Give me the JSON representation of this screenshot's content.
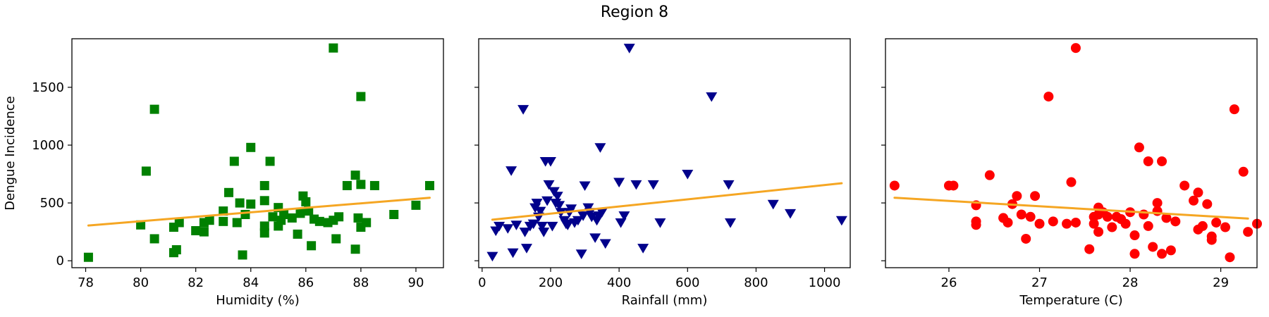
{
  "figure": {
    "title": "Region 8"
  },
  "chart_data": [
    {
      "type": "scatter",
      "xlabel": "Humidity (%)",
      "ylabel": "Dengue Incidence",
      "xlim": [
        77.5,
        91.0
      ],
      "ylim": [
        -60,
        1920
      ],
      "xticks": [
        78,
        80,
        82,
        84,
        86,
        88,
        90
      ],
      "yticks": [
        0,
        500,
        1000,
        1500
      ],
      "marker": "square",
      "color": "#008000",
      "trend_color": "#f5a623",
      "trend": [
        [
          78.1,
          305
        ],
        [
          90.5,
          545
        ]
      ],
      "points": [
        [
          78.1,
          30
        ],
        [
          80.0,
          310
        ],
        [
          80.2,
          775
        ],
        [
          80.5,
          1310
        ],
        [
          80.5,
          190
        ],
        [
          81.2,
          70
        ],
        [
          81.2,
          290
        ],
        [
          81.3,
          95
        ],
        [
          81.4,
          330
        ],
        [
          82.0,
          260
        ],
        [
          82.3,
          250
        ],
        [
          82.3,
          330
        ],
        [
          82.5,
          350
        ],
        [
          83.0,
          340
        ],
        [
          83.0,
          430
        ],
        [
          83.2,
          590
        ],
        [
          83.4,
          860
        ],
        [
          83.5,
          330
        ],
        [
          83.6,
          500
        ],
        [
          83.7,
          50
        ],
        [
          83.8,
          400
        ],
        [
          84.0,
          980
        ],
        [
          84.0,
          490
        ],
        [
          84.5,
          650
        ],
        [
          84.5,
          520
        ],
        [
          84.5,
          240
        ],
        [
          84.5,
          300
        ],
        [
          84.7,
          860
        ],
        [
          84.8,
          380
        ],
        [
          85.0,
          460
        ],
        [
          85.0,
          300
        ],
        [
          85.1,
          350
        ],
        [
          85.2,
          400
        ],
        [
          85.5,
          370
        ],
        [
          85.7,
          230
        ],
        [
          85.8,
          410
        ],
        [
          85.9,
          560
        ],
        [
          86.0,
          510
        ],
        [
          86.1,
          430
        ],
        [
          86.2,
          130
        ],
        [
          86.3,
          360
        ],
        [
          86.5,
          340
        ],
        [
          86.8,
          330
        ],
        [
          87.0,
          1840
        ],
        [
          87.0,
          350
        ],
        [
          87.1,
          190
        ],
        [
          87.2,
          380
        ],
        [
          87.5,
          650
        ],
        [
          87.8,
          740
        ],
        [
          87.8,
          100
        ],
        [
          87.9,
          370
        ],
        [
          88.0,
          1420
        ],
        [
          88.0,
          660
        ],
        [
          88.0,
          290
        ],
        [
          88.2,
          330
        ],
        [
          88.5,
          650
        ],
        [
          89.2,
          400
        ],
        [
          90.0,
          480
        ],
        [
          90.5,
          650
        ]
      ]
    },
    {
      "type": "scatter",
      "xlabel": "Rainfall (mm)",
      "ylabel": "",
      "xlim": [
        -10,
        1075
      ],
      "ylim": [
        -60,
        1920
      ],
      "xticks": [
        0,
        200,
        400,
        600,
        800,
        1000
      ],
      "yticks": [
        0,
        500,
        1000,
        1500
      ],
      "marker": "triangle-down",
      "color": "#00008b",
      "trend_color": "#f5a623",
      "trend": [
        [
          30,
          355
        ],
        [
          1050,
          670
        ]
      ],
      "points": [
        [
          30,
          40
        ],
        [
          40,
          260
        ],
        [
          50,
          300
        ],
        [
          75,
          280
        ],
        [
          85,
          780
        ],
        [
          90,
          70
        ],
        [
          100,
          310
        ],
        [
          120,
          1310
        ],
        [
          125,
          250
        ],
        [
          130,
          110
        ],
        [
          140,
          300
        ],
        [
          150,
          320
        ],
        [
          155,
          460
        ],
        [
          160,
          500
        ],
        [
          165,
          380
        ],
        [
          170,
          430
        ],
        [
          175,
          300
        ],
        [
          180,
          250
        ],
        [
          185,
          860
        ],
        [
          190,
          520
        ],
        [
          195,
          660
        ],
        [
          200,
          860
        ],
        [
          205,
          300
        ],
        [
          210,
          600
        ],
        [
          215,
          500
        ],
        [
          220,
          560
        ],
        [
          225,
          480
        ],
        [
          230,
          420
        ],
        [
          240,
          350
        ],
        [
          245,
          320
        ],
        [
          250,
          310
        ],
        [
          255,
          420
        ],
        [
          260,
          450
        ],
        [
          270,
          330
        ],
        [
          280,
          350
        ],
        [
          290,
          60
        ],
        [
          295,
          390
        ],
        [
          300,
          650
        ],
        [
          310,
          460
        ],
        [
          315,
          420
        ],
        [
          320,
          380
        ],
        [
          330,
          200
        ],
        [
          335,
          350
        ],
        [
          340,
          390
        ],
        [
          345,
          980
        ],
        [
          350,
          420
        ],
        [
          360,
          150
        ],
        [
          400,
          680
        ],
        [
          405,
          330
        ],
        [
          415,
          390
        ],
        [
          430,
          1840
        ],
        [
          450,
          660
        ],
        [
          470,
          110
        ],
        [
          500,
          660
        ],
        [
          520,
          330
        ],
        [
          600,
          750
        ],
        [
          670,
          1420
        ],
        [
          720,
          660
        ],
        [
          725,
          330
        ],
        [
          850,
          490
        ],
        [
          900,
          410
        ],
        [
          1050,
          350
        ]
      ]
    },
    {
      "type": "scatter",
      "xlabel": "Temperature (C)",
      "ylabel": "",
      "xlim": [
        25.3,
        29.4
      ],
      "ylim": [
        -60,
        1920
      ],
      "xticks": [
        26,
        27,
        28,
        29
      ],
      "yticks": [
        0,
        500,
        1000,
        1500
      ],
      "marker": "circle",
      "color": "#ff0000",
      "trend_color": "#f5a623",
      "trend": [
        [
          25.4,
          545
        ],
        [
          29.3,
          365
        ]
      ],
      "points": [
        [
          25.4,
          650
        ],
        [
          26.0,
          650
        ],
        [
          26.05,
          650
        ],
        [
          26.3,
          480
        ],
        [
          26.3,
          340
        ],
        [
          26.3,
          310
        ],
        [
          26.45,
          740
        ],
        [
          26.6,
          370
        ],
        [
          26.65,
          330
        ],
        [
          26.7,
          490
        ],
        [
          26.75,
          560
        ],
        [
          26.8,
          400
        ],
        [
          26.85,
          190
        ],
        [
          26.9,
          380
        ],
        [
          26.95,
          560
        ],
        [
          27.0,
          320
        ],
        [
          27.1,
          1420
        ],
        [
          27.15,
          340
        ],
        [
          27.3,
          320
        ],
        [
          27.35,
          680
        ],
        [
          27.4,
          1840
        ],
        [
          27.4,
          330
        ],
        [
          27.55,
          100
        ],
        [
          27.6,
          320
        ],
        [
          27.6,
          380
        ],
        [
          27.65,
          460
        ],
        [
          27.65,
          400
        ],
        [
          27.65,
          250
        ],
        [
          27.7,
          420
        ],
        [
          27.75,
          380
        ],
        [
          27.8,
          290
        ],
        [
          27.85,
          380
        ],
        [
          27.9,
          360
        ],
        [
          27.95,
          320
        ],
        [
          28.0,
          420
        ],
        [
          28.05,
          220
        ],
        [
          28.05,
          60
        ],
        [
          28.1,
          980
        ],
        [
          28.15,
          400
        ],
        [
          28.2,
          860
        ],
        [
          28.2,
          300
        ],
        [
          28.25,
          120
        ],
        [
          28.3,
          430
        ],
        [
          28.3,
          500
        ],
        [
          28.35,
          860
        ],
        [
          28.35,
          60
        ],
        [
          28.4,
          370
        ],
        [
          28.45,
          90
        ],
        [
          28.5,
          340
        ],
        [
          28.6,
          650
        ],
        [
          28.7,
          520
        ],
        [
          28.75,
          590
        ],
        [
          28.75,
          270
        ],
        [
          28.8,
          300
        ],
        [
          28.85,
          490
        ],
        [
          28.9,
          210
        ],
        [
          28.9,
          180
        ],
        [
          28.95,
          330
        ],
        [
          29.05,
          290
        ],
        [
          29.1,
          30
        ],
        [
          29.15,
          1310
        ],
        [
          29.25,
          770
        ],
        [
          29.3,
          250
        ],
        [
          29.4,
          320
        ]
      ]
    }
  ]
}
